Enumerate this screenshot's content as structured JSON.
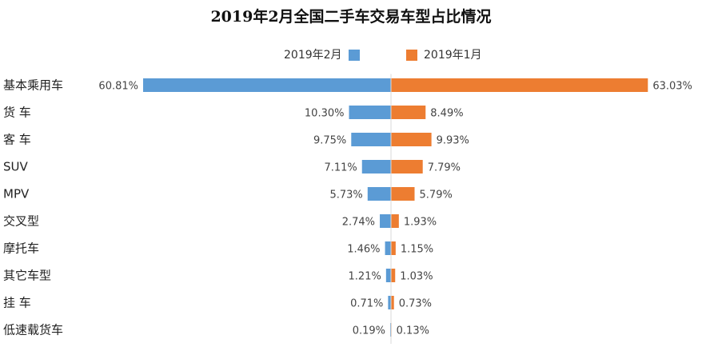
{
  "chart_data": {
    "type": "bar",
    "title": "2019年2月全国二手车交易车型占比情况",
    "categories": [
      "基本乘用车",
      "货 车",
      "客 车",
      "SUV",
      "MPV",
      "交叉型",
      "摩托车",
      "其它车型",
      "挂 车",
      "低速载货车"
    ],
    "series": [
      {
        "name": "2019年2月",
        "values": [
          60.81,
          10.3,
          9.75,
          7.11,
          5.73,
          2.74,
          1.46,
          1.21,
          0.71,
          0.19
        ],
        "labels": [
          "60.81%",
          "10.30%",
          "9.75%",
          "7.11%",
          "5.73%",
          "2.74%",
          "1.46%",
          "1.21%",
          "0.71%",
          "0.19%"
        ],
        "color": "#5b9bd5"
      },
      {
        "name": "2019年1月",
        "values": [
          63.03,
          8.49,
          9.93,
          7.79,
          5.79,
          1.93,
          1.15,
          1.03,
          0.73,
          0.13
        ],
        "labels": [
          "63.03%",
          "8.49%",
          "9.93%",
          "7.79%",
          "5.79%",
          "1.93%",
          "1.15%",
          "1.03%",
          "0.73%",
          "0.13%"
        ],
        "color": "#ed7d31"
      }
    ],
    "legend_position": "top",
    "grid": false
  }
}
